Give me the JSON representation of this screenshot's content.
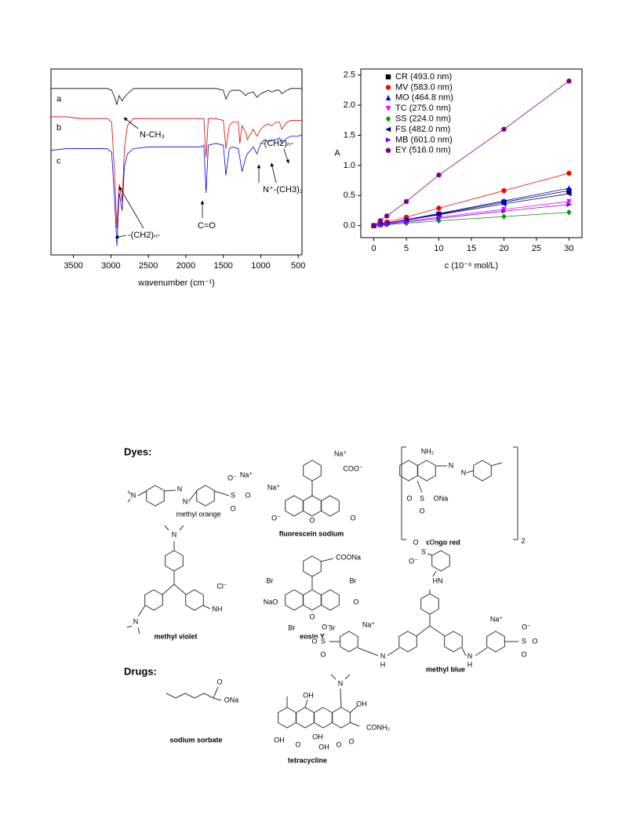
{
  "chart_data": [
    {
      "type": "line",
      "xlabel": "wavenumber (cm⁻¹)",
      "x": [
        3800,
        3600,
        3400,
        3200,
        3050,
        2990,
        2950,
        2920,
        2890,
        2850,
        2820,
        2780,
        2700,
        2500,
        2200,
        2000,
        1800,
        1760,
        1730,
        1700,
        1600,
        1500,
        1465,
        1420,
        1380,
        1300,
        1280,
        1250,
        1200,
        1180,
        1100,
        1050,
        1000,
        950,
        900,
        850,
        800,
        750,
        720,
        650,
        600,
        500,
        450
      ],
      "xlim": [
        3800,
        450
      ],
      "xticks": [
        3500,
        3000,
        2500,
        2000,
        1500,
        1000,
        500
      ],
      "ylim": [
        -5,
        100
      ],
      "series": [
        {
          "name": "a",
          "color": "#000000",
          "values": [
            89,
            89,
            89,
            89,
            89,
            88,
            84,
            80,
            85,
            82,
            84,
            86,
            89,
            89,
            89,
            89,
            89,
            89,
            89,
            89,
            89,
            88,
            83,
            87,
            88,
            88,
            88,
            87,
            85,
            86,
            87,
            84,
            86,
            87,
            88,
            87,
            88,
            88,
            86,
            88,
            89,
            89,
            89
          ]
        },
        {
          "name": "b",
          "color": "#e00000",
          "values": [
            73,
            73,
            72,
            72,
            72,
            70,
            40,
            10,
            35,
            25,
            55,
            68,
            72,
            72,
            72,
            72,
            72,
            72,
            50,
            72,
            72,
            71,
            55,
            68,
            70,
            70,
            58,
            68,
            64,
            60,
            66,
            62,
            66,
            68,
            69,
            68,
            70,
            70,
            66,
            70,
            71,
            71,
            71
          ]
        },
        {
          "name": "c",
          "color": "#0000e0",
          "values": [
            54,
            55,
            55,
            55,
            55,
            53,
            25,
            0,
            30,
            20,
            45,
            52,
            55,
            56,
            56,
            56,
            56,
            57,
            30,
            57,
            58,
            57,
            40,
            55,
            56,
            55,
            50,
            42,
            50,
            52,
            56,
            52,
            58,
            60,
            59,
            60,
            60,
            61,
            58,
            61,
            62,
            62,
            63
          ]
        }
      ],
      "annotations": [
        "N-CH₃",
        "-(CH2)ₙ-",
        "N⁺-(CH3)₂",
        "C=O",
        "-(CH2)ₙ-"
      ]
    },
    {
      "type": "scatter",
      "xlabel": "c (10⁻⁶ mol/L)",
      "ylabel": "A",
      "x": [
        0,
        1,
        2,
        5,
        10,
        20,
        30
      ],
      "xlim": [
        -2,
        32
      ],
      "xticks": [
        0,
        5,
        10,
        15,
        20,
        25,
        30
      ],
      "ylim": [
        -0.2,
        2.6
      ],
      "yticks": [
        {
          "value": 0,
          "label": "0.0"
        },
        {
          "value": 0.5,
          "label": "0.5"
        },
        {
          "value": 1,
          "label": "1.0"
        },
        {
          "value": 1.5,
          "label": "1.5"
        },
        {
          "value": 2,
          "label": "2.0"
        },
        {
          "value": 2.5,
          "label": "2.5"
        }
      ],
      "legend": "upper left",
      "series": [
        {
          "name": "CR (493.0 nm)",
          "color": "#000000",
          "marker": "square",
          "values": [
            0,
            0.02,
            0.04,
            0.1,
            0.19,
            0.39,
            0.58
          ]
        },
        {
          "name": "MV (583.0 nm)",
          "color": "#ff0000",
          "marker": "circle",
          "values": [
            0,
            0.03,
            0.06,
            0.14,
            0.29,
            0.58,
            0.87
          ]
        },
        {
          "name": "MO (464.8 nm)",
          "color": "#0000ff",
          "marker": "triangle-up",
          "values": [
            0,
            0.02,
            0.04,
            0.1,
            0.2,
            0.41,
            0.62
          ]
        },
        {
          "name": "TC (275.0 nm)",
          "color": "#ff00ff",
          "marker": "triangle-down",
          "values": [
            0,
            0.014,
            0.028,
            0.07,
            0.14,
            0.27,
            0.4
          ]
        },
        {
          "name": "SS (224.0 nm)",
          "color": "#009900",
          "marker": "diamond",
          "values": [
            0,
            0.008,
            0.015,
            0.04,
            0.08,
            0.15,
            0.22
          ]
        },
        {
          "name": "FS (482.0 nm)",
          "color": "#000080",
          "marker": "triangle-left",
          "values": [
            0,
            0.02,
            0.04,
            0.09,
            0.18,
            0.36,
            0.53
          ]
        },
        {
          "name": "MB (601.0 nm)",
          "color": "#8000ff",
          "marker": "triangle-right",
          "values": [
            0,
            0.012,
            0.024,
            0.06,
            0.12,
            0.24,
            0.35
          ]
        },
        {
          "name": "EY (516.0 nm)",
          "color": "#800080",
          "marker": "circle",
          "values": [
            0,
            0.08,
            0.16,
            0.4,
            0.84,
            1.6,
            2.4
          ]
        }
      ]
    }
  ],
  "diagram": {
    "headings": [
      "Dyes:",
      "Drugs:"
    ],
    "structures": [
      {
        "name": "methyl orange",
        "labels": [
          "N",
          "N",
          "N",
          "S",
          "O",
          "O",
          "O⁻",
          "Na⁺"
        ]
      },
      {
        "name": "fluorescein sodium",
        "labels": [
          "Na⁺",
          "COO⁻",
          "Na⁺",
          "O⁻",
          "O",
          "O"
        ]
      },
      {
        "name": "congo red",
        "labels": [
          "NH₂",
          "N",
          "N",
          "O",
          "S",
          "ONa",
          "O",
          "2"
        ]
      },
      {
        "name": "methyl violet",
        "labels": [
          "N",
          "N",
          "Cl⁻",
          "NH"
        ]
      },
      {
        "name": "eosin Y",
        "labels": [
          "COONa",
          "Br",
          "Br",
          "NaO",
          "O",
          "O",
          "Br",
          "Br"
        ]
      },
      {
        "name": "methyl blue",
        "labels": [
          "S",
          "O",
          "O",
          "O⁻",
          "HN",
          "Na⁺",
          "S",
          "O⁻",
          "O",
          "O",
          "N",
          "H",
          "N",
          "H",
          "Na⁺",
          "S",
          "O⁻",
          "O",
          "O"
        ]
      },
      {
        "name": "sodium sorbate",
        "labels": [
          "O",
          "ONa"
        ]
      },
      {
        "name": "tetracycline",
        "labels": [
          "OH",
          "N",
          "OH",
          "CONH₂",
          "OH",
          "O",
          "OH",
          "OH",
          "O",
          "O"
        ]
      }
    ]
  }
}
